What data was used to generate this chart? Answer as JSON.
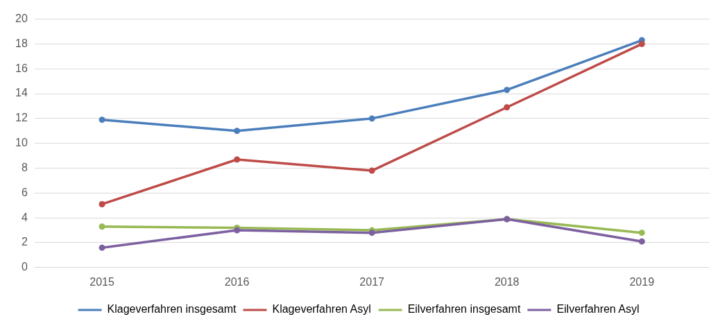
{
  "chart_data": {
    "type": "line",
    "categories": [
      "2015",
      "2016",
      "2017",
      "2018",
      "2019"
    ],
    "series": [
      {
        "name": "Klageverfahren insgesamt",
        "color": "#4a7ebb",
        "values": [
          11.9,
          11.0,
          12.0,
          14.3,
          18.3
        ]
      },
      {
        "name": "Klageverfahren Asyl",
        "color": "#be4b48",
        "values": [
          5.1,
          8.7,
          7.8,
          12.9,
          18.0
        ]
      },
      {
        "name": "Eilverfahren insgesamt",
        "color": "#98b954",
        "values": [
          3.3,
          3.2,
          3.0,
          3.9,
          2.8
        ]
      },
      {
        "name": "Eilverfahren Asyl",
        "color": "#7d60a0",
        "values": [
          1.6,
          3.0,
          2.8,
          3.9,
          2.1
        ]
      }
    ],
    "ylim": [
      0,
      20
    ],
    "yticks": [
      0,
      2,
      4,
      6,
      8,
      10,
      12,
      14,
      16,
      18,
      20
    ],
    "grid": "y",
    "legend": "bottom",
    "marker": "circle",
    "line_style": "solid"
  }
}
